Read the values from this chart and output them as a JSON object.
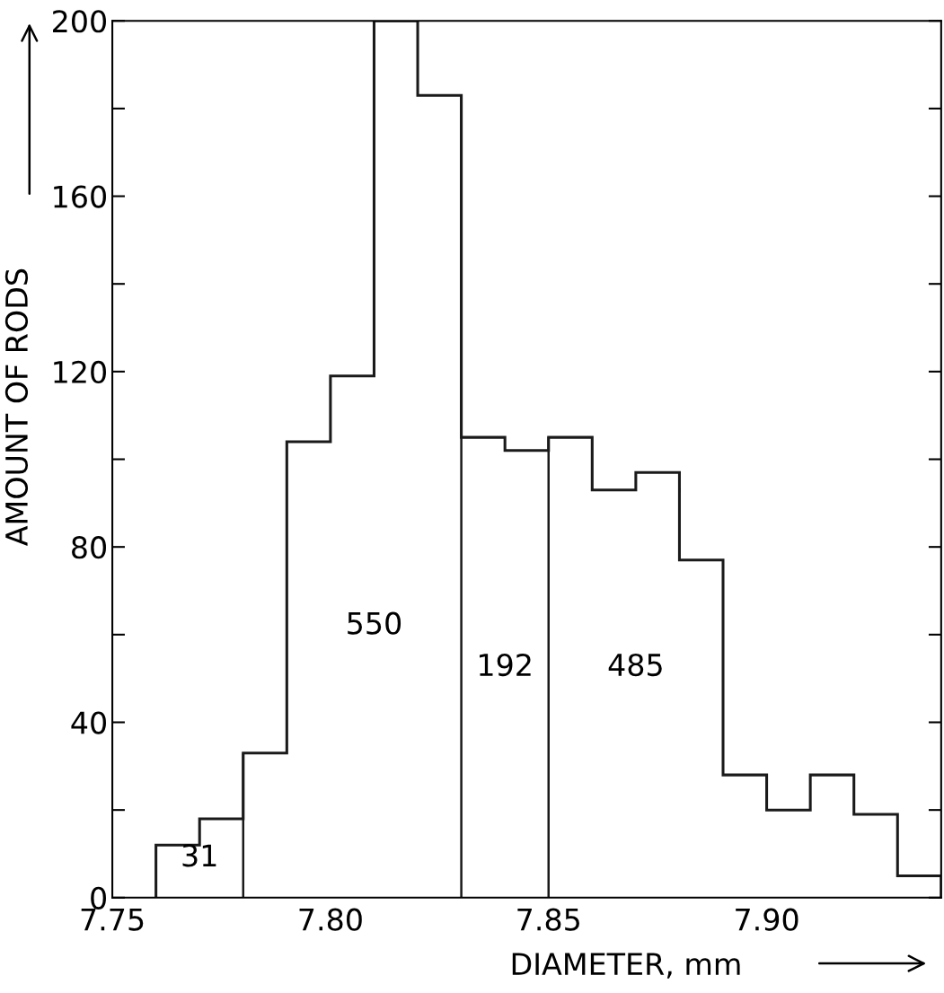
{
  "chart_data": {
    "type": "histogram",
    "xlabel": "DIAMETER, mm",
    "ylabel": "AMOUNT OF RODS",
    "bins": [
      7.76,
      7.77,
      7.78,
      7.79,
      7.8,
      7.81,
      7.82,
      7.83,
      7.84,
      7.85,
      7.86,
      7.87,
      7.88,
      7.89,
      7.9,
      7.91,
      7.92,
      7.93,
      7.94
    ],
    "values": [
      12,
      18,
      33,
      104,
      119,
      200,
      183,
      105,
      102,
      105,
      93,
      97,
      77,
      28,
      20,
      28,
      19,
      5
    ],
    "color": "#1a1a1a",
    "xlim": [
      7.75,
      7.94
    ],
    "xticks": [
      7.75,
      {
        "value": 7.8,
        "label": "7.80"
      },
      7.85,
      {
        "value": 7.9,
        "label": "7.90"
      }
    ],
    "ylim": [
      0,
      200
    ],
    "yticks": [
      0,
      {
        "value": 20,
        "label": null
      },
      40,
      {
        "value": 60,
        "label": null
      },
      80,
      {
        "value": 100,
        "label": null
      },
      120,
      {
        "value": 140,
        "label": null
      },
      160,
      {
        "value": 180,
        "label": null
      },
      200
    ],
    "ref_lines": [
      {
        "axis": "x",
        "value": 7.78
      },
      {
        "axis": "x",
        "value": 7.83
      },
      {
        "axis": "x",
        "value": 7.85
      }
    ],
    "annotations": [
      "31",
      "550",
      "192",
      "485"
    ],
    "grid": false,
    "legend": false
  }
}
